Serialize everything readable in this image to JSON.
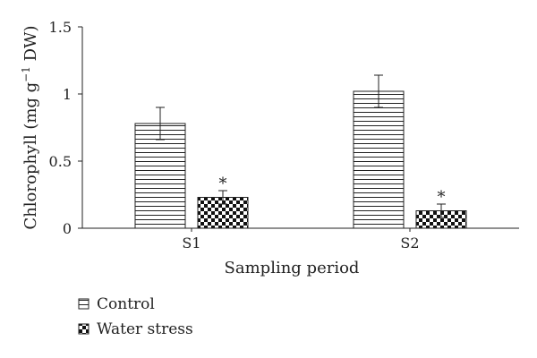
{
  "chart_data": {
    "type": "bar",
    "title": "",
    "xlabel": "Sampling period",
    "ylabel_main": "Chlorophyll (mg g",
    "ylabel_sup": "−1",
    "ylabel_end": " DW)",
    "ylim": [
      0,
      1.5
    ],
    "yticks": [
      {
        "value": 0,
        "label": "0"
      },
      {
        "value": 0.5,
        "label": "0.5"
      },
      {
        "value": 1,
        "label": "1"
      },
      {
        "value": 1.5,
        "label": "1.5"
      }
    ],
    "categories": [
      "S1",
      "S2"
    ],
    "series": [
      {
        "name": "Control",
        "pattern": "horizontal-lines",
        "values": [
          0.78,
          1.02
        ],
        "errors": [
          0.12,
          0.12
        ],
        "annotations": [
          "",
          ""
        ]
      },
      {
        "name": "Water stress",
        "pattern": "checkerboard",
        "values": [
          0.23,
          0.13
        ],
        "errors": [
          0.05,
          0.05
        ],
        "annotations": [
          "*",
          "*"
        ]
      }
    ],
    "legend_position": "bottom-left"
  }
}
